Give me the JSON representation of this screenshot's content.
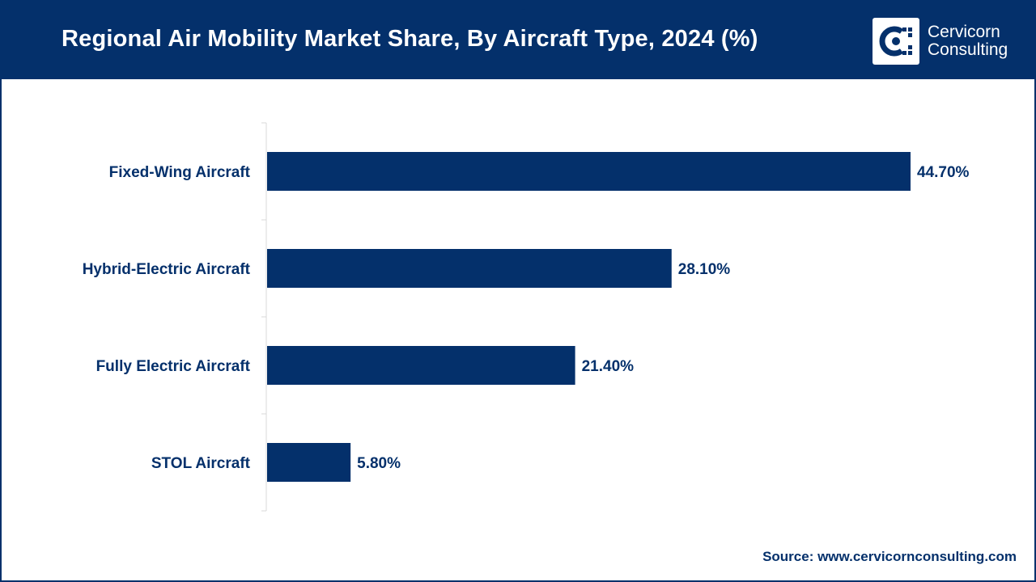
{
  "header": {
    "title": "Regional Air Mobility Market Share, By Aircraft Type, 2024 (%)",
    "logo_line1": "Cervicorn",
    "logo_line2": "Consulting"
  },
  "footer": {
    "source": "Source: www.cervicornconsulting.com"
  },
  "colors": {
    "brand": "#04306b",
    "bar": "#04306b",
    "axis": "#d9d9d9"
  },
  "chart_data": {
    "type": "bar",
    "orientation": "horizontal",
    "title": "Regional Air Mobility Market Share, By Aircraft Type, 2024 (%)",
    "categories": [
      "Fixed-Wing Aircraft",
      "Hybrid-Electric Aircraft",
      "Fully Electric Aircraft",
      "STOL Aircraft"
    ],
    "values": [
      44.7,
      28.1,
      21.4,
      5.8
    ],
    "data_labels": [
      "44.70%",
      "28.10%",
      "21.40%",
      "5.80%"
    ],
    "xlabel": "",
    "ylabel": "",
    "xlim": [
      0,
      50
    ],
    "grid": false,
    "legend": "none"
  }
}
